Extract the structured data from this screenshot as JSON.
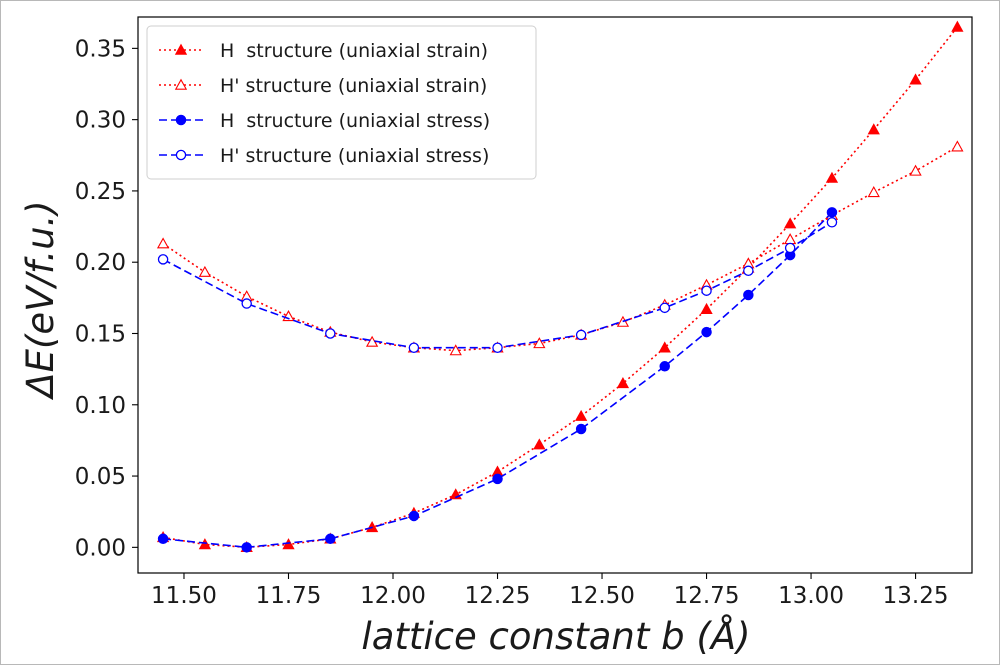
{
  "chart_data": {
    "type": "line",
    "xlabel": "lattice constant b (Å)",
    "ylabel": "ΔE(eV/f.u.)",
    "xlim": [
      11.39,
      13.385
    ],
    "ylim": [
      -0.018,
      0.372
    ],
    "xticks": [
      "11.50",
      "11.75",
      "12.00",
      "12.25",
      "12.50",
      "12.75",
      "13.00",
      "13.25"
    ],
    "yticks": [
      "0.00",
      "0.05",
      "0.10",
      "0.15",
      "0.20",
      "0.25",
      "0.30",
      "0.35"
    ],
    "grid": false,
    "legend_position": "top-left",
    "series": [
      {
        "name": "H  structure (uniaxial strain)",
        "color": "#ff0000",
        "line_style": "dotted",
        "marker": "filled-triangle",
        "x": [
          11.45,
          11.55,
          11.65,
          11.75,
          11.85,
          11.95,
          12.05,
          12.15,
          12.25,
          12.35,
          12.45,
          12.55,
          12.65,
          12.75,
          12.85,
          12.95,
          13.05,
          13.15,
          13.25,
          13.35
        ],
        "y": [
          0.007,
          0.002,
          0.0,
          0.002,
          0.006,
          0.014,
          0.024,
          0.037,
          0.053,
          0.072,
          0.092,
          0.115,
          0.14,
          0.167,
          0.196,
          0.227,
          0.259,
          0.293,
          0.328,
          0.365
        ]
      },
      {
        "name": "H' structure (uniaxial strain)",
        "color": "#ff0000",
        "line_style": "dotted",
        "marker": "open-triangle",
        "x": [
          11.45,
          11.55,
          11.65,
          11.75,
          11.85,
          11.95,
          12.05,
          12.15,
          12.25,
          12.35,
          12.45,
          12.55,
          12.65,
          12.75,
          12.85,
          12.95,
          13.05,
          13.15,
          13.25,
          13.35
        ],
        "y": [
          0.213,
          0.193,
          0.176,
          0.162,
          0.151,
          0.144,
          0.14,
          0.138,
          0.14,
          0.143,
          0.149,
          0.158,
          0.17,
          0.184,
          0.199,
          0.216,
          0.233,
          0.249,
          0.264,
          0.281
        ]
      },
      {
        "name": "H  structure (uniaxial stress)",
        "color": "#0000ff",
        "line_style": "dashed",
        "marker": "filled-circle",
        "x": [
          11.45,
          11.65,
          11.85,
          12.05,
          12.25,
          12.45,
          12.65,
          12.75,
          12.85,
          12.95,
          13.05
        ],
        "y": [
          0.006,
          0.0,
          0.006,
          0.022,
          0.048,
          0.083,
          0.127,
          0.151,
          0.177,
          0.205,
          0.235
        ]
      },
      {
        "name": "H' structure (uniaxial stress)",
        "color": "#0000ff",
        "line_style": "dashed",
        "marker": "open-circle",
        "x": [
          11.45,
          11.65,
          11.85,
          12.05,
          12.25,
          12.45,
          12.65,
          12.75,
          12.85,
          12.95,
          13.05
        ],
        "y": [
          0.202,
          0.171,
          0.15,
          0.14,
          0.14,
          0.149,
          0.168,
          0.18,
          0.194,
          0.21,
          0.228
        ]
      }
    ]
  }
}
